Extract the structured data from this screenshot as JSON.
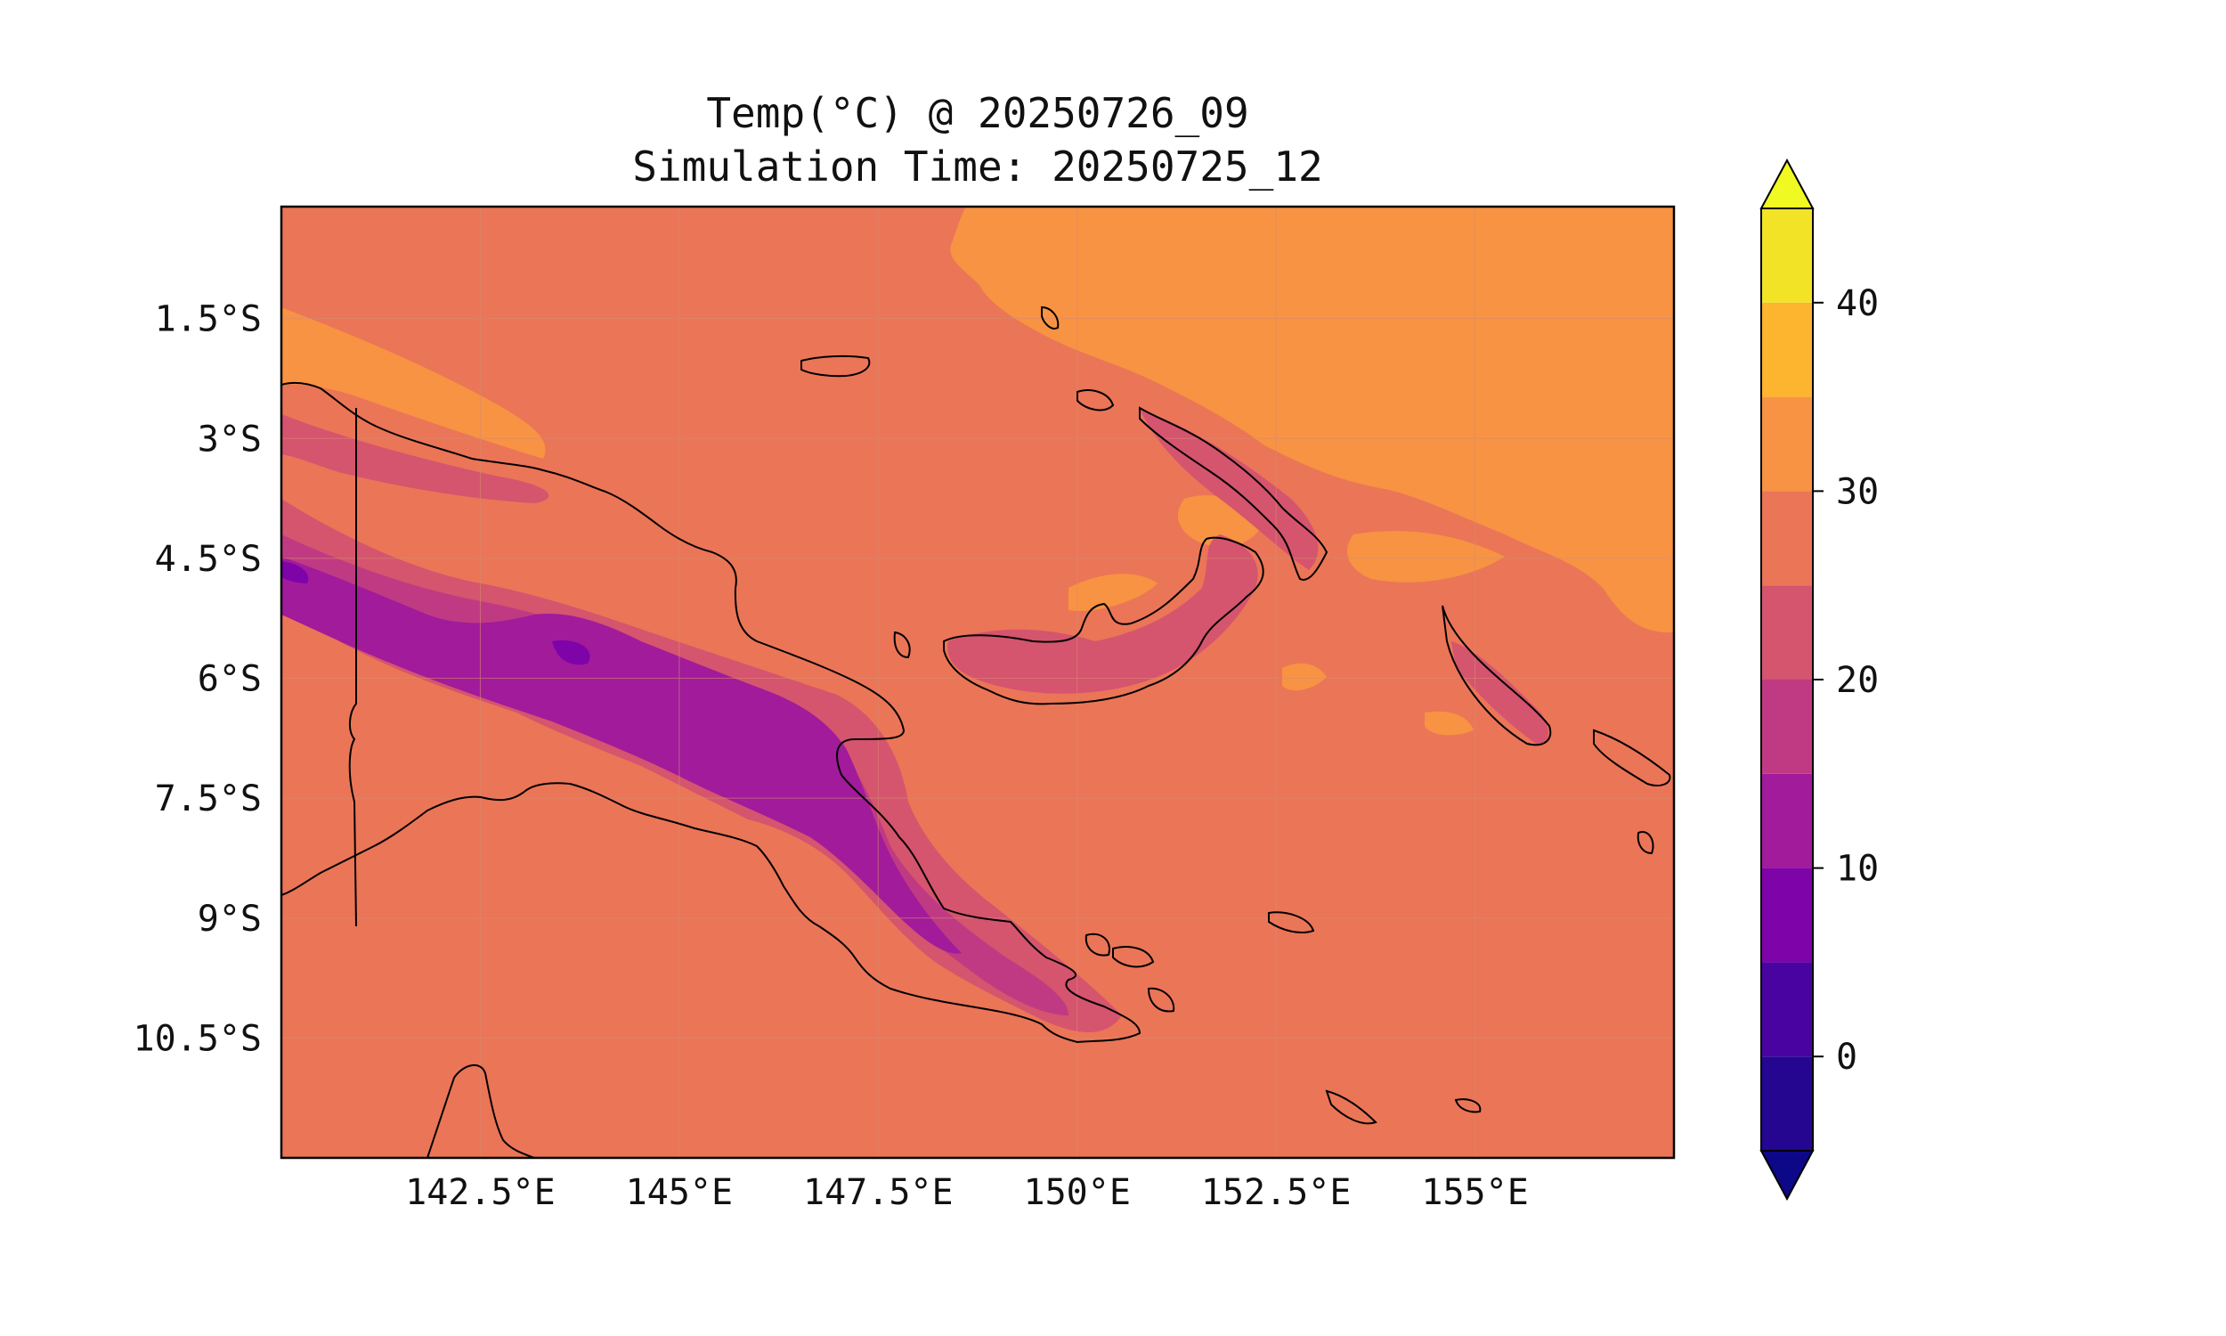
{
  "title": {
    "line1": "Temp(°C) @ 20250726_09",
    "line2": "Simulation Time: 20250725_12"
  },
  "map": {
    "lon_range": [
      140.0,
      157.5
    ],
    "lat_range": [
      -12.0,
      -0.1
    ],
    "x_ticks": [
      {
        "value": 142.5,
        "label": "142.5°E"
      },
      {
        "value": 145.0,
        "label": "145°E"
      },
      {
        "value": 147.5,
        "label": "147.5°E"
      },
      {
        "value": 150.0,
        "label": "150°E"
      },
      {
        "value": 152.5,
        "label": "152.5°E"
      },
      {
        "value": 155.0,
        "label": "155°E"
      }
    ],
    "y_ticks": [
      {
        "value": -1.5,
        "label": "1.5°S"
      },
      {
        "value": -3.0,
        "label": "3°S"
      },
      {
        "value": -4.5,
        "label": "4.5°S"
      },
      {
        "value": -6.0,
        "label": "6°S"
      },
      {
        "value": -7.5,
        "label": "7.5°S"
      },
      {
        "value": -9.0,
        "label": "9°S"
      },
      {
        "value": -10.5,
        "label": "10.5°S"
      }
    ],
    "background_band_color": "#eb7557"
  },
  "colorbar": {
    "min": -5,
    "max": 45,
    "extend": "both",
    "under_color": "#0d0887",
    "over_color": "#f0f921",
    "bands": [
      {
        "from": -5,
        "to": 0,
        "color": "#240691"
      },
      {
        "from": 0,
        "to": 5,
        "color": "#4903a0"
      },
      {
        "from": 5,
        "to": 10,
        "color": "#7e03a8"
      },
      {
        "from": 10,
        "to": 15,
        "color": "#a11b9b"
      },
      {
        "from": 15,
        "to": 20,
        "color": "#c03a83"
      },
      {
        "from": 20,
        "to": 25,
        "color": "#d5546e"
      },
      {
        "from": 25,
        "to": 30,
        "color": "#eb7557"
      },
      {
        "from": 30,
        "to": 35,
        "color": "#f79342"
      },
      {
        "from": 35,
        "to": 40,
        "color": "#fdb42f"
      },
      {
        "from": 40,
        "to": 45,
        "color": "#f2e327"
      }
    ],
    "ticks": [
      {
        "value": 0,
        "label": "0"
      },
      {
        "value": 10,
        "label": "10"
      },
      {
        "value": 20,
        "label": "20"
      },
      {
        "value": 30,
        "label": "30"
      },
      {
        "value": 40,
        "label": "40"
      }
    ]
  }
}
